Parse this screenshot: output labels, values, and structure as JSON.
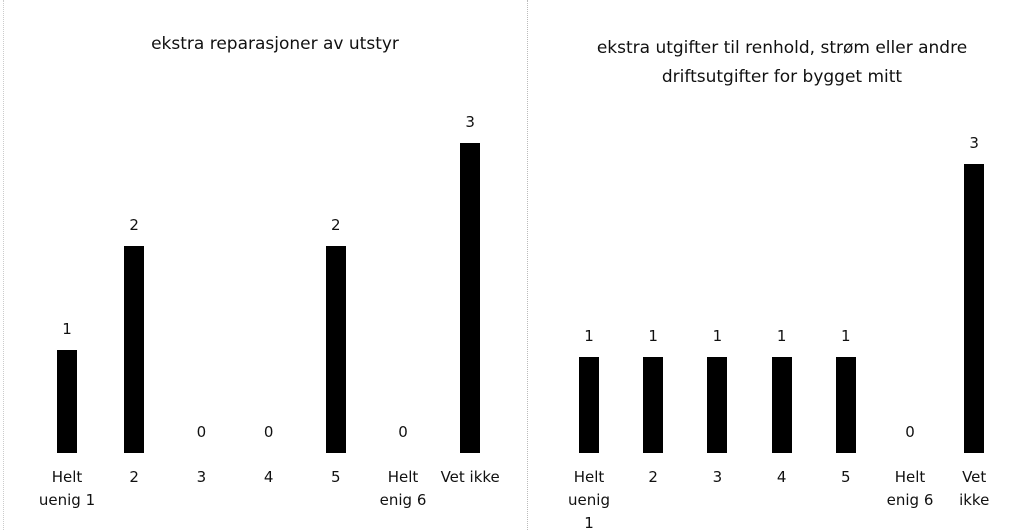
{
  "chart_data": [
    {
      "type": "bar",
      "title": "ekstra reparasjoner av utstyr",
      "categories": [
        "Helt uenig 1",
        "2",
        "3",
        "4",
        "5",
        "Helt enig 6",
        "Vet ikke"
      ],
      "values": [
        1,
        2,
        0,
        0,
        2,
        0,
        3
      ],
      "color": "#000000",
      "ylim": [
        0,
        3
      ]
    },
    {
      "type": "bar",
      "title": "ekstra utgifter til renhold, strøm eller andre driftsutgifter for bygget mitt",
      "categories": [
        "Helt uenig 1",
        "2",
        "3",
        "4",
        "5",
        "Helt enig 6",
        "Vet ikke"
      ],
      "values": [
        1,
        1,
        1,
        1,
        1,
        0,
        3
      ],
      "color": "#000000",
      "ylim": [
        0,
        3
      ]
    }
  ]
}
